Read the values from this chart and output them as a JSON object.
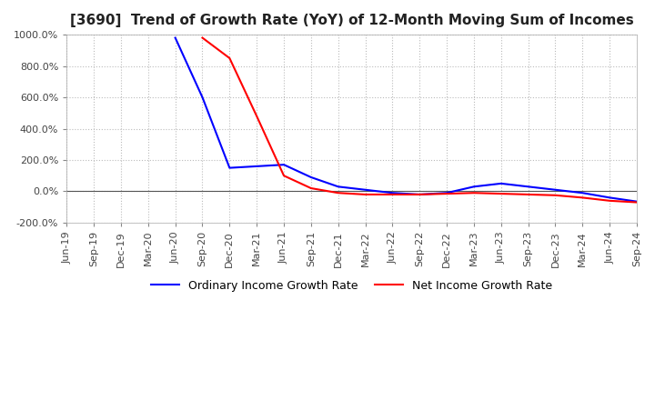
{
  "title": "[3690]  Trend of Growth Rate (YoY) of 12-Month Moving Sum of Incomes",
  "background_color": "#ffffff",
  "grid_color": "#bbbbbb",
  "legend_labels": [
    "Ordinary Income Growth Rate",
    "Net Income Growth Rate"
  ],
  "line_colors": [
    "#0000ff",
    "#ff0000"
  ],
  "ylim": [
    -200,
    1000
  ],
  "yticks": [
    -200,
    0,
    200,
    400,
    600,
    800,
    1000
  ],
  "x_labels": [
    "Jun-19",
    "Sep-19",
    "Dec-19",
    "Mar-20",
    "Jun-20",
    "Sep-20",
    "Dec-20",
    "Mar-21",
    "Jun-21",
    "Sep-21",
    "Dec-21",
    "Mar-22",
    "Jun-22",
    "Sep-22",
    "Dec-22",
    "Mar-23",
    "Jun-23",
    "Sep-23",
    "Dec-23",
    "Mar-24",
    "Jun-24",
    "Sep-24"
  ],
  "ordinary_income": [
    null,
    null,
    null,
    null,
    980,
    600,
    150,
    160,
    170,
    90,
    30,
    10,
    -10,
    -20,
    -10,
    30,
    50,
    30,
    10,
    -10,
    -40,
    -65
  ],
  "net_income": [
    null,
    null,
    null,
    null,
    null,
    980,
    850,
    480,
    100,
    20,
    -10,
    -20,
    -20,
    -20,
    -15,
    -10,
    -15,
    -20,
    -25,
    -40,
    -60,
    -70
  ]
}
